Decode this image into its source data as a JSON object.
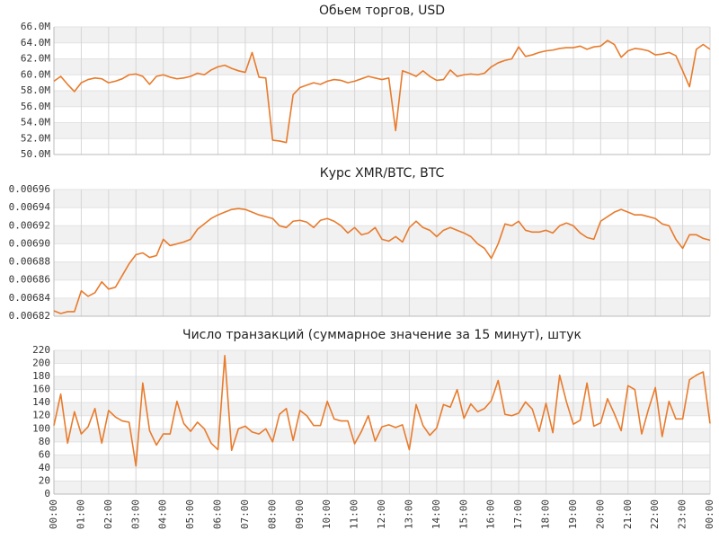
{
  "chart_data": [
    {
      "type": "line",
      "title": "Обьем торгов, USD",
      "x": [
        0,
        0.25,
        0.5,
        0.75,
        1,
        1.25,
        1.5,
        1.75,
        2,
        2.25,
        2.5,
        2.75,
        3,
        3.25,
        3.5,
        3.75,
        4,
        4.25,
        4.5,
        4.75,
        5,
        5.25,
        5.5,
        5.75,
        6,
        6.25,
        6.5,
        6.75,
        7,
        7.25,
        7.5,
        7.75,
        8,
        8.25,
        8.5,
        8.75,
        9,
        9.25,
        9.5,
        9.75,
        10,
        10.25,
        10.5,
        10.75,
        11,
        11.25,
        11.5,
        11.75,
        12,
        12.25,
        12.5,
        12.75,
        13,
        13.25,
        13.5,
        13.75,
        14,
        14.25,
        14.5,
        14.75,
        15,
        15.25,
        15.5,
        15.75,
        16,
        16.25,
        16.5,
        16.75,
        17,
        17.25,
        17.5,
        17.75,
        18,
        18.25,
        18.5,
        18.75,
        19,
        19.25,
        19.5,
        19.75,
        20,
        20.25,
        20.5,
        20.75,
        21,
        21.25,
        21.5,
        21.75,
        22,
        22.25,
        22.5,
        22.75,
        23,
        23.25,
        23.5,
        23.75,
        24
      ],
      "xlim": [
        0,
        24
      ],
      "xticks": [
        0,
        1,
        2,
        3,
        4,
        5,
        6,
        7,
        8,
        9,
        10,
        11,
        12,
        13,
        14,
        15,
        16,
        17,
        18,
        19,
        20,
        21,
        22,
        23,
        24
      ],
      "ylim": [
        50000000,
        66000000
      ],
      "yticks": [
        {
          "value": 50000000,
          "label": "50.0M"
        },
        {
          "value": 52000000,
          "label": "52.0M"
        },
        {
          "value": 54000000,
          "label": "54.0M"
        },
        {
          "value": 56000000,
          "label": "56.0M"
        },
        {
          "value": 58000000,
          "label": "58.0M"
        },
        {
          "value": 60000000,
          "label": "60.0M"
        },
        {
          "value": 62000000,
          "label": "62.0M"
        },
        {
          "value": 64000000,
          "label": "64.0M"
        },
        {
          "value": 66000000,
          "label": "66.0M"
        }
      ],
      "grid": true,
      "series": [
        {
          "color": "#e87b2c",
          "values": [
            59200000,
            59800000,
            58800000,
            57900000,
            59000000,
            59400000,
            59600000,
            59500000,
            59000000,
            59200000,
            59500000,
            60000000,
            60100000,
            59800000,
            58800000,
            59800000,
            60000000,
            59700000,
            59500000,
            59600000,
            59800000,
            60200000,
            60000000,
            60600000,
            61000000,
            61200000,
            60800000,
            60500000,
            60300000,
            62800000,
            59700000,
            59600000,
            51800000,
            51700000,
            51500000,
            57500000,
            58400000,
            58700000,
            59000000,
            58800000,
            59200000,
            59400000,
            59300000,
            59000000,
            59200000,
            59500000,
            59800000,
            59600000,
            59400000,
            59600000,
            53000000,
            60500000,
            60200000,
            59800000,
            60500000,
            59800000,
            59300000,
            59400000,
            60600000,
            59800000,
            60000000,
            60100000,
            60000000,
            60200000,
            61000000,
            61500000,
            61800000,
            62000000,
            63500000,
            62300000,
            62500000,
            62800000,
            63000000,
            63100000,
            63300000,
            63400000,
            63400000,
            63600000,
            63200000,
            63500000,
            63600000,
            64300000,
            63800000,
            62200000,
            63000000,
            63300000,
            63200000,
            63000000,
            62500000,
            62600000,
            62800000,
            62400000,
            60500000,
            58500000,
            63200000,
            63800000,
            63200000
          ]
        }
      ]
    },
    {
      "type": "line",
      "title": "Курс XMR/BTC, BTC",
      "x": [
        0,
        0.25,
        0.5,
        0.75,
        1,
        1.25,
        1.5,
        1.75,
        2,
        2.25,
        2.5,
        2.75,
        3,
        3.25,
        3.5,
        3.75,
        4,
        4.25,
        4.5,
        4.75,
        5,
        5.25,
        5.5,
        5.75,
        6,
        6.25,
        6.5,
        6.75,
        7,
        7.25,
        7.5,
        7.75,
        8,
        8.25,
        8.5,
        8.75,
        9,
        9.25,
        9.5,
        9.75,
        10,
        10.25,
        10.5,
        10.75,
        11,
        11.25,
        11.5,
        11.75,
        12,
        12.25,
        12.5,
        12.75,
        13,
        13.25,
        13.5,
        13.75,
        14,
        14.25,
        14.5,
        14.75,
        15,
        15.25,
        15.5,
        15.75,
        16,
        16.25,
        16.5,
        16.75,
        17,
        17.25,
        17.5,
        17.75,
        18,
        18.25,
        18.5,
        18.75,
        19,
        19.25,
        19.5,
        19.75,
        20,
        20.25,
        20.5,
        20.75,
        21,
        21.25,
        21.5,
        21.75,
        22,
        22.25,
        22.5,
        22.75,
        23,
        23.25,
        23.5,
        23.75,
        24
      ],
      "xlim": [
        0,
        24
      ],
      "xticks": [
        0,
        1,
        2,
        3,
        4,
        5,
        6,
        7,
        8,
        9,
        10,
        11,
        12,
        13,
        14,
        15,
        16,
        17,
        18,
        19,
        20,
        21,
        22,
        23,
        24
      ],
      "ylim": [
        0.00682,
        0.00696
      ],
      "yticks": [
        0.00682,
        0.00684,
        0.00686,
        0.00688,
        {
          "value": 0.0069,
          "label": "0.00690"
        },
        0.00692,
        0.00694,
        0.00696
      ],
      "grid": true,
      "series": [
        {
          "color": "#e87b2c",
          "values": [
            0.006826,
            0.006823,
            0.006825,
            0.006825,
            0.006848,
            0.006842,
            0.006846,
            0.006858,
            0.00685,
            0.006852,
            0.006865,
            0.006878,
            0.006888,
            0.00689,
            0.006885,
            0.006887,
            0.006905,
            0.006898,
            0.0069,
            0.006902,
            0.006905,
            0.006916,
            0.006922,
            0.006928,
            0.006932,
            0.006935,
            0.006938,
            0.006939,
            0.006938,
            0.006935,
            0.006932,
            0.00693,
            0.006928,
            0.00692,
            0.006918,
            0.006925,
            0.006926,
            0.006924,
            0.006918,
            0.006926,
            0.006928,
            0.006925,
            0.00692,
            0.006912,
            0.006918,
            0.00691,
            0.006912,
            0.006918,
            0.006905,
            0.006903,
            0.006908,
            0.006902,
            0.006918,
            0.006925,
            0.006918,
            0.006915,
            0.006908,
            0.006915,
            0.006918,
            0.006915,
            0.006912,
            0.006908,
            0.0069,
            0.006895,
            0.006884,
            0.0069,
            0.006922,
            0.00692,
            0.006925,
            0.006915,
            0.006913,
            0.006913,
            0.006915,
            0.006912,
            0.00692,
            0.006923,
            0.00692,
            0.006912,
            0.006907,
            0.006905,
            0.006925,
            0.00693,
            0.006935,
            0.006938,
            0.006935,
            0.006932,
            0.006932,
            0.00693,
            0.006928,
            0.006922,
            0.00692,
            0.006905,
            0.006895,
            0.00691,
            0.00691,
            0.006906,
            0.006904
          ]
        }
      ]
    },
    {
      "type": "line",
      "title": "Число транзакций (суммарное значение за 15 минут), штук",
      "x": [
        0,
        0.25,
        0.5,
        0.75,
        1,
        1.25,
        1.5,
        1.75,
        2,
        2.25,
        2.5,
        2.75,
        3,
        3.25,
        3.5,
        3.75,
        4,
        4.25,
        4.5,
        4.75,
        5,
        5.25,
        5.5,
        5.75,
        6,
        6.25,
        6.5,
        6.75,
        7,
        7.25,
        7.5,
        7.75,
        8,
        8.25,
        8.5,
        8.75,
        9,
        9.25,
        9.5,
        9.75,
        10,
        10.25,
        10.5,
        10.75,
        11,
        11.25,
        11.5,
        11.75,
        12,
        12.25,
        12.5,
        12.75,
        13,
        13.25,
        13.5,
        13.75,
        14,
        14.25,
        14.5,
        14.75,
        15,
        15.25,
        15.5,
        15.75,
        16,
        16.25,
        16.5,
        16.75,
        17,
        17.25,
        17.5,
        17.75,
        18,
        18.25,
        18.5,
        18.75,
        19,
        19.25,
        19.5,
        19.75,
        20,
        20.25,
        20.5,
        20.75,
        21,
        21.25,
        21.5,
        21.75,
        22,
        22.25,
        22.5,
        22.75,
        23,
        23.25,
        23.5,
        23.75,
        24
      ],
      "xlim": [
        0,
        24
      ],
      "xticks": [
        {
          "value": 0,
          "label": "00:00"
        },
        {
          "value": 1,
          "label": "01:00"
        },
        {
          "value": 2,
          "label": "02:00"
        },
        {
          "value": 3,
          "label": "03:00"
        },
        {
          "value": 4,
          "label": "04:00"
        },
        {
          "value": 5,
          "label": "05:00"
        },
        {
          "value": 6,
          "label": "06:00"
        },
        {
          "value": 7,
          "label": "07:00"
        },
        {
          "value": 8,
          "label": "08:00"
        },
        {
          "value": 9,
          "label": "09:00"
        },
        {
          "value": 10,
          "label": "10:00"
        },
        {
          "value": 11,
          "label": "11:00"
        },
        {
          "value": 12,
          "label": "12:00"
        },
        {
          "value": 13,
          "label": "13:00"
        },
        {
          "value": 14,
          "label": "14:00"
        },
        {
          "value": 15,
          "label": "15:00"
        },
        {
          "value": 16,
          "label": "16:00"
        },
        {
          "value": 17,
          "label": "17:00"
        },
        {
          "value": 18,
          "label": "18:00"
        },
        {
          "value": 19,
          "label": "19:00"
        },
        {
          "value": 20,
          "label": "20:00"
        },
        {
          "value": 21,
          "label": "21:00"
        },
        {
          "value": 22,
          "label": "22:00"
        },
        {
          "value": 23,
          "label": "23:00"
        },
        {
          "value": 24,
          "label": "00:00"
        }
      ],
      "ylim": [
        0,
        220
      ],
      "yticks": [
        0,
        20,
        40,
        60,
        80,
        100,
        120,
        140,
        160,
        180,
        200,
        220
      ],
      "grid": true,
      "series": [
        {
          "color": "#e87b2c",
          "values": [
            105,
            153,
            78,
            126,
            92,
            103,
            131,
            78,
            128,
            118,
            112,
            110,
            43,
            170,
            97,
            75,
            92,
            92,
            142,
            108,
            96,
            110,
            100,
            78,
            68,
            212,
            67,
            100,
            104,
            95,
            92,
            100,
            80,
            122,
            131,
            82,
            128,
            120,
            105,
            105,
            142,
            115,
            112,
            112,
            77,
            96,
            120,
            81,
            103,
            106,
            102,
            106,
            68,
            137,
            105,
            90,
            101,
            137,
            133,
            160,
            116,
            138,
            126,
            131,
            143,
            174,
            122,
            120,
            124,
            141,
            130,
            96,
            139,
            94,
            182,
            141,
            107,
            113,
            170,
            104,
            109,
            146,
            123,
            97,
            166,
            160,
            92,
            130,
            163,
            88,
            142,
            115,
            115,
            175,
            182,
            187,
            108
          ]
        }
      ]
    }
  ]
}
